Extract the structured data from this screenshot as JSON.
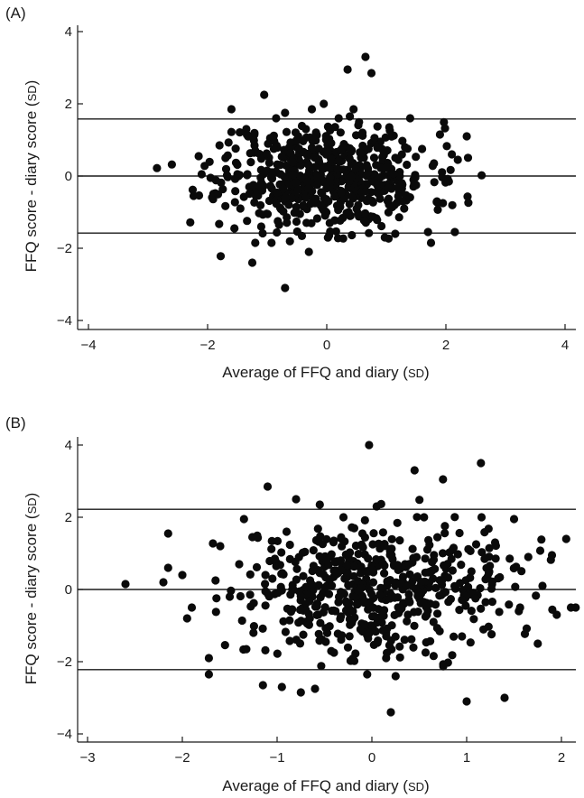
{
  "chart_data": [
    {
      "type": "scatter",
      "panel_label": "(A)",
      "xlabel_main": "Average of FFQ and diary (",
      "xlabel_unit": "SD",
      "xlabel_close": ")",
      "ylabel_main": "FFQ score - diary score (",
      "ylabel_unit": "SD",
      "ylabel_close": ")",
      "xlim": [
        -4.2,
        4.2
      ],
      "ylim": [
        -4.2,
        4.2
      ],
      "xticks": [
        -4,
        -2,
        0,
        2,
        4
      ],
      "yticks": [
        -4,
        -2,
        0,
        2,
        4
      ],
      "xtick_labels": [
        "−4",
        "−2",
        "0",
        "2",
        "4"
      ],
      "ytick_labels": [
        "−4",
        "−2",
        "0",
        "2",
        "4"
      ],
      "reference_lines_y": [
        1.58,
        0,
        -1.58
      ],
      "series": [
        {
          "points": [
            [
              -2.85,
              0.22
            ],
            [
              -2.6,
              0.32
            ],
            [
              -2.25,
              -0.38
            ],
            [
              -2.15,
              0.55
            ],
            [
              -2.05,
              0.28
            ],
            [
              -1.95,
              -0.05
            ],
            [
              -1.8,
              0.85
            ],
            [
              -1.78,
              -2.22
            ],
            [
              -1.7,
              0.5
            ],
            [
              -1.6,
              1.22
            ],
            [
              -1.6,
              1.85
            ],
            [
              -1.55,
              -1.45
            ],
            [
              -1.5,
              0.05
            ],
            [
              -1.45,
              -0.9
            ],
            [
              -1.35,
              1.3
            ],
            [
              -1.3,
              -0.3
            ],
            [
              -1.25,
              -2.4
            ],
            [
              -1.2,
              0.7
            ],
            [
              -1.2,
              -1.85
            ],
            [
              -1.1,
              -1.4
            ],
            [
              -1.05,
              2.25
            ],
            [
              -1.0,
              0.15
            ],
            [
              -0.95,
              1.05
            ],
            [
              -0.9,
              -0.55
            ],
            [
              -0.85,
              1.6
            ],
            [
              -0.8,
              -1.35
            ],
            [
              -0.75,
              -0.5
            ],
            [
              -0.7,
              -3.1
            ],
            [
              -0.7,
              1.75
            ],
            [
              -0.6,
              0.25
            ],
            [
              -0.55,
              0.9
            ],
            [
              -0.45,
              -1.05
            ],
            [
              -0.35,
              1.3
            ],
            [
              -0.3,
              -2.1
            ],
            [
              -0.25,
              1.85
            ],
            [
              -0.2,
              -0.75
            ],
            [
              -0.1,
              0.05
            ],
            [
              -0.05,
              2.0
            ],
            [
              0.05,
              -1.3
            ],
            [
              0.1,
              0.65
            ],
            [
              0.2,
              1.6
            ],
            [
              0.3,
              -0.45
            ],
            [
              0.35,
              2.95
            ],
            [
              0.4,
              -1.1
            ],
            [
              0.45,
              1.85
            ],
            [
              0.55,
              0.3
            ],
            [
              0.6,
              1.2
            ],
            [
              0.65,
              3.3
            ],
            [
              0.7,
              -1.2
            ],
            [
              0.75,
              2.85
            ],
            [
              0.8,
              0.05
            ],
            [
              0.9,
              0.95
            ],
            [
              0.95,
              -0.3
            ],
            [
              1.05,
              1.35
            ],
            [
              1.15,
              -1.6
            ],
            [
              1.2,
              0.45
            ],
            [
              1.3,
              -0.9
            ],
            [
              1.4,
              1.6
            ],
            [
              1.5,
              -0.25
            ],
            [
              1.6,
              0.75
            ],
            [
              1.7,
              -1.55
            ],
            [
              1.75,
              -1.85
            ],
            [
              1.8,
              0.35
            ],
            [
              1.9,
              1.15
            ],
            [
              1.95,
              -0.75
            ],
            [
              2.05,
              -0.15
            ],
            [
              2.1,
              0.6
            ],
            [
              2.15,
              -1.55
            ],
            [
              2.2,
              0.45
            ],
            [
              2.35,
              1.1
            ],
            [
              2.6,
              0.02
            ]
          ],
          "cluster": {
            "center": [
              0.0,
              0.0
            ],
            "spread_x": 0.85,
            "spread_y": 0.75,
            "count": 540,
            "xrange": [
              -2.3,
              2.5
            ],
            "yrange": [
              -1.85,
              1.9
            ],
            "seed": 11
          }
        }
      ]
    },
    {
      "type": "scatter",
      "panel_label": "(B)",
      "xlabel_main": "Average of FFQ and diary (",
      "xlabel_unit": "SD",
      "xlabel_close": ")",
      "ylabel_main": "FFQ score - diary score (",
      "ylabel_unit": "SD",
      "ylabel_close": ")",
      "xlim": [
        -3.1,
        2.5
      ],
      "ylim": [
        -4.2,
        4.2
      ],
      "xticks": [
        -3,
        -2,
        -1,
        0,
        1,
        2
      ],
      "yticks": [
        -4,
        -2,
        0,
        2,
        4
      ],
      "xtick_labels": [
        "−3",
        "−2",
        "−1",
        "0",
        "1",
        "2"
      ],
      "ytick_labels": [
        "−4",
        "−2",
        "0",
        "2",
        "4"
      ],
      "reference_lines_y": [
        2.22,
        0,
        -2.22
      ],
      "series": [
        {
          "points": [
            [
              -2.6,
              0.15
            ],
            [
              -2.2,
              0.2
            ],
            [
              -2.15,
              1.55
            ],
            [
              -2.15,
              0.6
            ],
            [
              -2.0,
              0.4
            ],
            [
              -1.95,
              -0.8
            ],
            [
              -1.9,
              -0.5
            ],
            [
              -1.72,
              -1.9
            ],
            [
              -1.72,
              -2.35
            ],
            [
              -1.65,
              0.25
            ],
            [
              -1.6,
              1.2
            ],
            [
              -1.5,
              -0.2
            ],
            [
              -1.4,
              0.7
            ],
            [
              -1.35,
              1.95
            ],
            [
              -1.25,
              -1.2
            ],
            [
              -1.15,
              -2.65
            ],
            [
              -1.1,
              2.85
            ],
            [
              -1.05,
              0.3
            ],
            [
              -0.95,
              -2.7
            ],
            [
              -0.9,
              1.6
            ],
            [
              -0.8,
              2.5
            ],
            [
              -0.75,
              -2.85
            ],
            [
              -0.7,
              -0.4
            ],
            [
              -0.6,
              -2.75
            ],
            [
              -0.55,
              2.35
            ],
            [
              -0.45,
              0.9
            ],
            [
              -0.4,
              -1.75
            ],
            [
              -0.3,
              2.0
            ],
            [
              -0.2,
              -0.6
            ],
            [
              -0.1,
              1.55
            ],
            [
              -0.05,
              -2.35
            ],
            [
              -0.03,
              4.0
            ],
            [
              0.05,
              2.3
            ],
            [
              0.15,
              -1.9
            ],
            [
              0.2,
              -3.4
            ],
            [
              0.25,
              -2.4
            ],
            [
              0.35,
              0.7
            ],
            [
              0.45,
              3.3
            ],
            [
              0.55,
              2.0
            ],
            [
              0.65,
              -0.9
            ],
            [
              0.75,
              3.05
            ],
            [
              0.85,
              1.1
            ],
            [
              0.95,
              -1.3
            ],
            [
              1.0,
              -3.1
            ],
            [
              1.05,
              0.5
            ],
            [
              1.15,
              3.5
            ],
            [
              1.2,
              -0.35
            ],
            [
              1.3,
              1.3
            ],
            [
              1.4,
              -3.0
            ],
            [
              1.5,
              1.95
            ],
            [
              1.55,
              -0.6
            ],
            [
              1.65,
              0.9
            ],
            [
              1.75,
              -1.5
            ],
            [
              1.8,
              0.1
            ],
            [
              1.9,
              0.95
            ],
            [
              1.95,
              -0.7
            ],
            [
              2.05,
              1.4
            ],
            [
              2.1,
              -0.5
            ],
            [
              2.15,
              -0.5
            ],
            [
              2.35,
              0.4
            ],
            [
              2.38,
              -0.7
            ]
          ],
          "cluster": {
            "center": [
              0.0,
              0.0
            ],
            "spread_x": 0.72,
            "spread_y": 0.95,
            "count": 520,
            "xrange": [
              -1.8,
              2.0
            ],
            "yrange": [
              -2.25,
              2.5
            ],
            "seed": 29
          }
        }
      ]
    }
  ]
}
